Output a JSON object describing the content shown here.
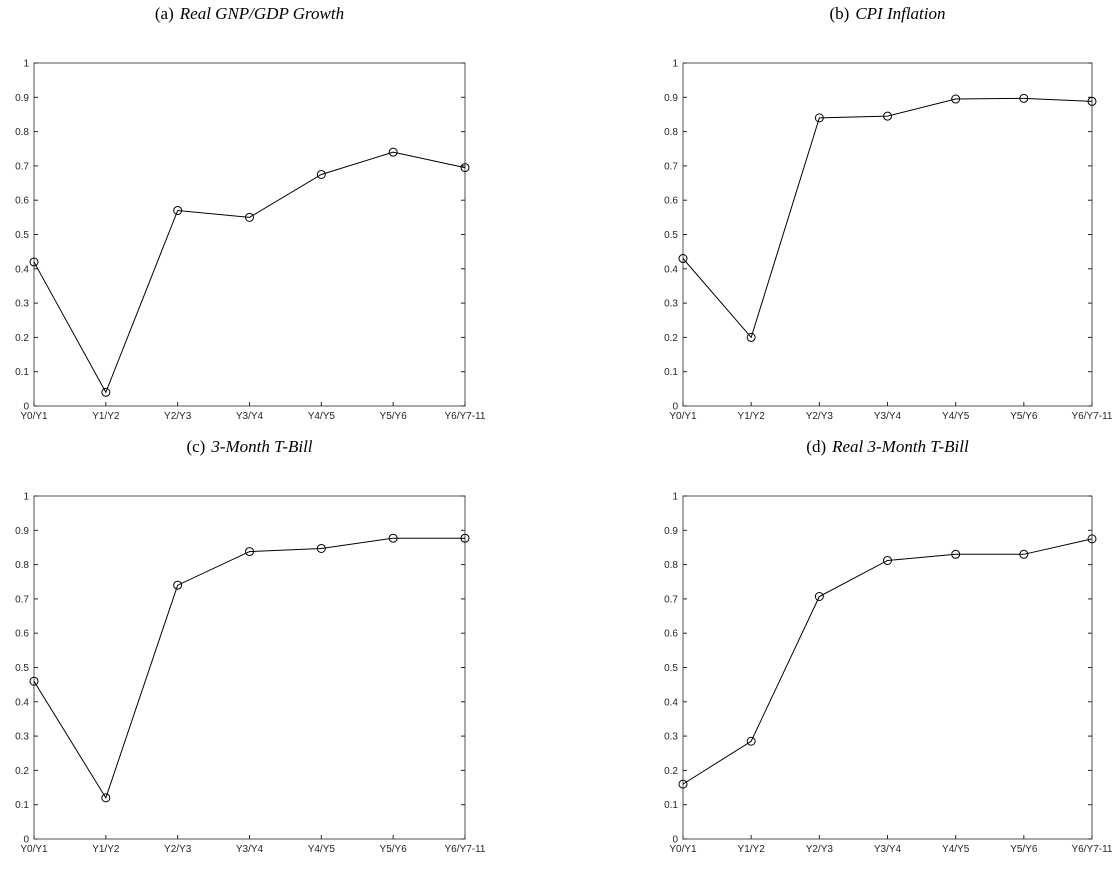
{
  "chart_data": [
    {
      "type": "line",
      "label": "(a)",
      "title": "Real GNP/GDP Growth",
      "categories": [
        "Y0/Y1",
        "Y1/Y2",
        "Y2/Y3",
        "Y3/Y4",
        "Y4/Y5",
        "Y5/Y6",
        "Y6/Y7-11"
      ],
      "values": [
        0.42,
        0.04,
        0.57,
        0.55,
        0.675,
        0.74,
        0.695
      ],
      "color": "#000000",
      "ylim": [
        0,
        1
      ],
      "yticks": [
        0,
        0.1,
        0.2,
        0.3,
        0.4,
        0.5,
        0.6,
        0.7,
        0.8,
        0.9,
        1
      ],
      "grid": false
    },
    {
      "type": "line",
      "label": "(b)",
      "title": "CPI Inflation",
      "categories": [
        "Y0/Y1",
        "Y1/Y2",
        "Y2/Y3",
        "Y3/Y4",
        "Y4/Y5",
        "Y5/Y6",
        "Y6/Y7-11"
      ],
      "values": [
        0.43,
        0.2,
        0.84,
        0.845,
        0.895,
        0.897,
        0.888
      ],
      "color": "#000000",
      "ylim": [
        0,
        1
      ],
      "yticks": [
        0,
        0.1,
        0.2,
        0.3,
        0.4,
        0.5,
        0.6,
        0.7,
        0.8,
        0.9,
        1
      ],
      "grid": false
    },
    {
      "type": "line",
      "label": "(c)",
      "title": "3-Month T-Bill",
      "categories": [
        "Y0/Y1",
        "Y1/Y2",
        "Y2/Y3",
        "Y3/Y4",
        "Y4/Y5",
        "Y5/Y6",
        "Y6/Y7-11"
      ],
      "values": [
        0.46,
        0.12,
        0.74,
        0.838,
        0.847,
        0.877,
        0.877
      ],
      "color": "#000000",
      "ylim": [
        0,
        1
      ],
      "yticks": [
        0,
        0.1,
        0.2,
        0.3,
        0.4,
        0.5,
        0.6,
        0.7,
        0.8,
        0.9,
        1
      ],
      "grid": false
    },
    {
      "type": "line",
      "label": "(d)",
      "title": "Real 3-Month T-Bill",
      "categories": [
        "Y0/Y1",
        "Y1/Y2",
        "Y2/Y3",
        "Y3/Y4",
        "Y4/Y5",
        "Y5/Y6",
        "Y6/Y7-11"
      ],
      "values": [
        0.16,
        0.285,
        0.707,
        0.812,
        0.83,
        0.83,
        0.875
      ],
      "color": "#000000",
      "ylim": [
        0,
        1
      ],
      "yticks": [
        0,
        0.1,
        0.2,
        0.3,
        0.4,
        0.5,
        0.6,
        0.7,
        0.8,
        0.9,
        1
      ],
      "grid": false
    }
  ]
}
